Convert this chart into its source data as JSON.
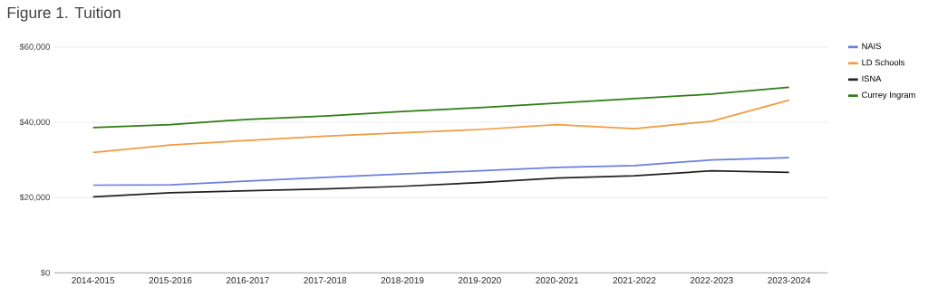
{
  "chart_data": {
    "type": "line",
    "title": "Figure 1. Tuition",
    "categories": [
      "2014-2015",
      "2015-2016",
      "2016-2017",
      "2017-2018",
      "2018-2019",
      "2019-2020",
      "2020-2021",
      "2021-2022",
      "2022-2023",
      "2023-2024"
    ],
    "series": [
      {
        "name": "NAIS",
        "color": "#6b7fe0",
        "values": [
          23300,
          23400,
          24400,
          25400,
          26300,
          27100,
          28000,
          28500,
          30000,
          30600
        ]
      },
      {
        "name": "LD Schools",
        "color": "#f29a3e",
        "values": [
          32000,
          34000,
          35200,
          36300,
          37200,
          38100,
          39400,
          38300,
          40300,
          45900
        ]
      },
      {
        "name": "ISNA",
        "color": "#222222",
        "values": [
          20200,
          21300,
          21800,
          22300,
          23000,
          24000,
          25200,
          25800,
          27100,
          26700
        ]
      },
      {
        "name": "Currey Ingram",
        "color": "#2e7d14",
        "values": [
          38600,
          39400,
          40800,
          41700,
          42900,
          43900,
          45100,
          46300,
          47500,
          49300
        ]
      }
    ],
    "ylim": [
      0,
      60000
    ],
    "yticks": [
      {
        "value": 0,
        "label": "$0"
      },
      {
        "value": 20000,
        "label": "$20,000"
      },
      {
        "value": 40000,
        "label": "$40,000"
      },
      {
        "value": 60000,
        "label": "$60,000"
      }
    ],
    "grid": "y",
    "legend": "top right",
    "marker": "none",
    "line_style": "solid"
  }
}
